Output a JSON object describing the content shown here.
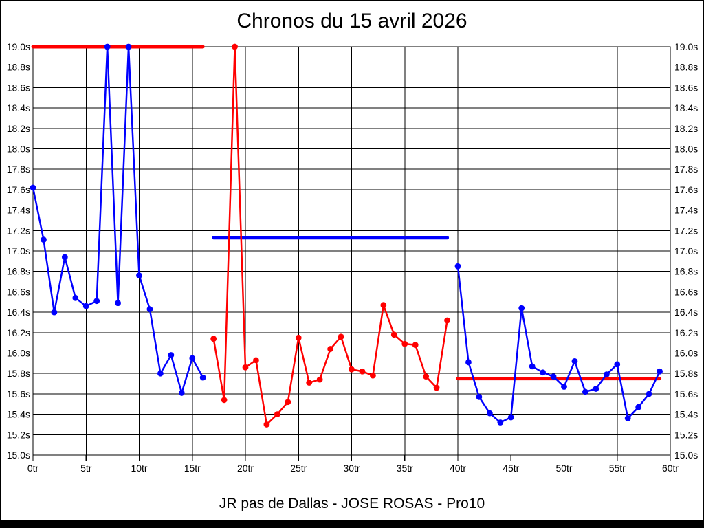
{
  "window": {
    "background_color": "#ffffff",
    "frame_color": "#000000",
    "axis_color": "#000000"
  },
  "chart_data": {
    "type": "line",
    "title": "Chronos du 15 avril 2026",
    "subtitle": "JR pas de Dallas - JOSE ROSAS - Pro10",
    "x_unit": "tr",
    "y_unit": "s",
    "xlim": [
      0,
      60
    ],
    "ylim": [
      15.0,
      19.0
    ],
    "grid": true,
    "legend": "none",
    "x_ticks": [
      0,
      5,
      10,
      15,
      20,
      25,
      30,
      35,
      40,
      45,
      50,
      55,
      60
    ],
    "x_tick_labels": [
      "0tr",
      "5tr",
      "10tr",
      "15tr",
      "20tr",
      "25tr",
      "30tr",
      "35tr",
      "40tr",
      "45tr",
      "50tr",
      "55tr",
      "60tr"
    ],
    "y_ticks": [
      19.0,
      18.8,
      18.6,
      18.4,
      18.2,
      18.0,
      17.8,
      17.6,
      17.4,
      17.2,
      17.0,
      16.8,
      16.6,
      16.4,
      16.2,
      16.0,
      15.8,
      15.6,
      15.4,
      15.2,
      15.0
    ],
    "y_tick_labels": [
      "19.0s",
      "18.8s",
      "18.6s",
      "18.4s",
      "18.2s",
      "18.0s",
      "17.8s",
      "17.6s",
      "17.4s",
      "17.2s",
      "17.0s",
      "16.8s",
      "16.6s",
      "16.4s",
      "16.2s",
      "16.0s",
      "15.8s",
      "15.6s",
      "15.4s",
      "15.2s",
      "15.0s"
    ],
    "series": [
      {
        "name": "blue-run-1",
        "color": "#0000ff",
        "points": [
          [
            0,
            17.62
          ],
          [
            1,
            17.11
          ],
          [
            2,
            16.4
          ],
          [
            3,
            16.94
          ],
          [
            4,
            16.54
          ],
          [
            5,
            16.46
          ],
          [
            6,
            16.51
          ],
          [
            7,
            19.0
          ],
          [
            8,
            16.49
          ],
          [
            9,
            19.0
          ],
          [
            10,
            16.76
          ],
          [
            11,
            16.43
          ],
          [
            12,
            15.8
          ],
          [
            13,
            15.98
          ],
          [
            14,
            15.61
          ],
          [
            15,
            15.95
          ],
          [
            16,
            15.76
          ]
        ]
      },
      {
        "name": "red-run",
        "color": "#ff0000",
        "points": [
          [
            17,
            16.14
          ],
          [
            18,
            15.54
          ],
          [
            19,
            19.0
          ],
          [
            20,
            15.86
          ],
          [
            21,
            15.93
          ],
          [
            22,
            15.3
          ],
          [
            23,
            15.4
          ],
          [
            24,
            15.52
          ],
          [
            25,
            16.15
          ],
          [
            26,
            15.71
          ],
          [
            27,
            15.74
          ],
          [
            28,
            16.04
          ],
          [
            29,
            16.16
          ],
          [
            30,
            15.84
          ],
          [
            31,
            15.82
          ],
          [
            32,
            15.78
          ],
          [
            33,
            16.47
          ],
          [
            34,
            16.18
          ],
          [
            35,
            16.09
          ],
          [
            36,
            16.08
          ],
          [
            37,
            15.77
          ],
          [
            38,
            15.66
          ],
          [
            39,
            16.32
          ]
        ]
      },
      {
        "name": "blue-run-2",
        "color": "#0000ff",
        "points": [
          [
            40,
            16.85
          ],
          [
            41,
            15.91
          ],
          [
            42,
            15.57
          ],
          [
            43,
            15.41
          ],
          [
            44,
            15.32
          ],
          [
            45,
            15.37
          ],
          [
            46,
            16.44
          ],
          [
            47,
            15.87
          ],
          [
            48,
            15.81
          ],
          [
            49,
            15.77
          ],
          [
            50,
            15.67
          ],
          [
            51,
            15.92
          ],
          [
            52,
            15.62
          ],
          [
            53,
            15.65
          ],
          [
            54,
            15.79
          ],
          [
            55,
            15.89
          ],
          [
            56,
            15.36
          ],
          [
            57,
            15.47
          ],
          [
            58,
            15.6
          ],
          [
            59,
            15.82
          ]
        ]
      }
    ],
    "reference_lines": [
      {
        "name": "red-ref-high",
        "color": "#ff0000",
        "y": 19.0,
        "x1": 0,
        "x2": 16
      },
      {
        "name": "blue-ref-mid",
        "color": "#0000ff",
        "y": 17.13,
        "x1": 17,
        "x2": 39
      },
      {
        "name": "red-ref-low",
        "color": "#ff0000",
        "y": 15.75,
        "x1": 40,
        "x2": 59
      }
    ]
  }
}
